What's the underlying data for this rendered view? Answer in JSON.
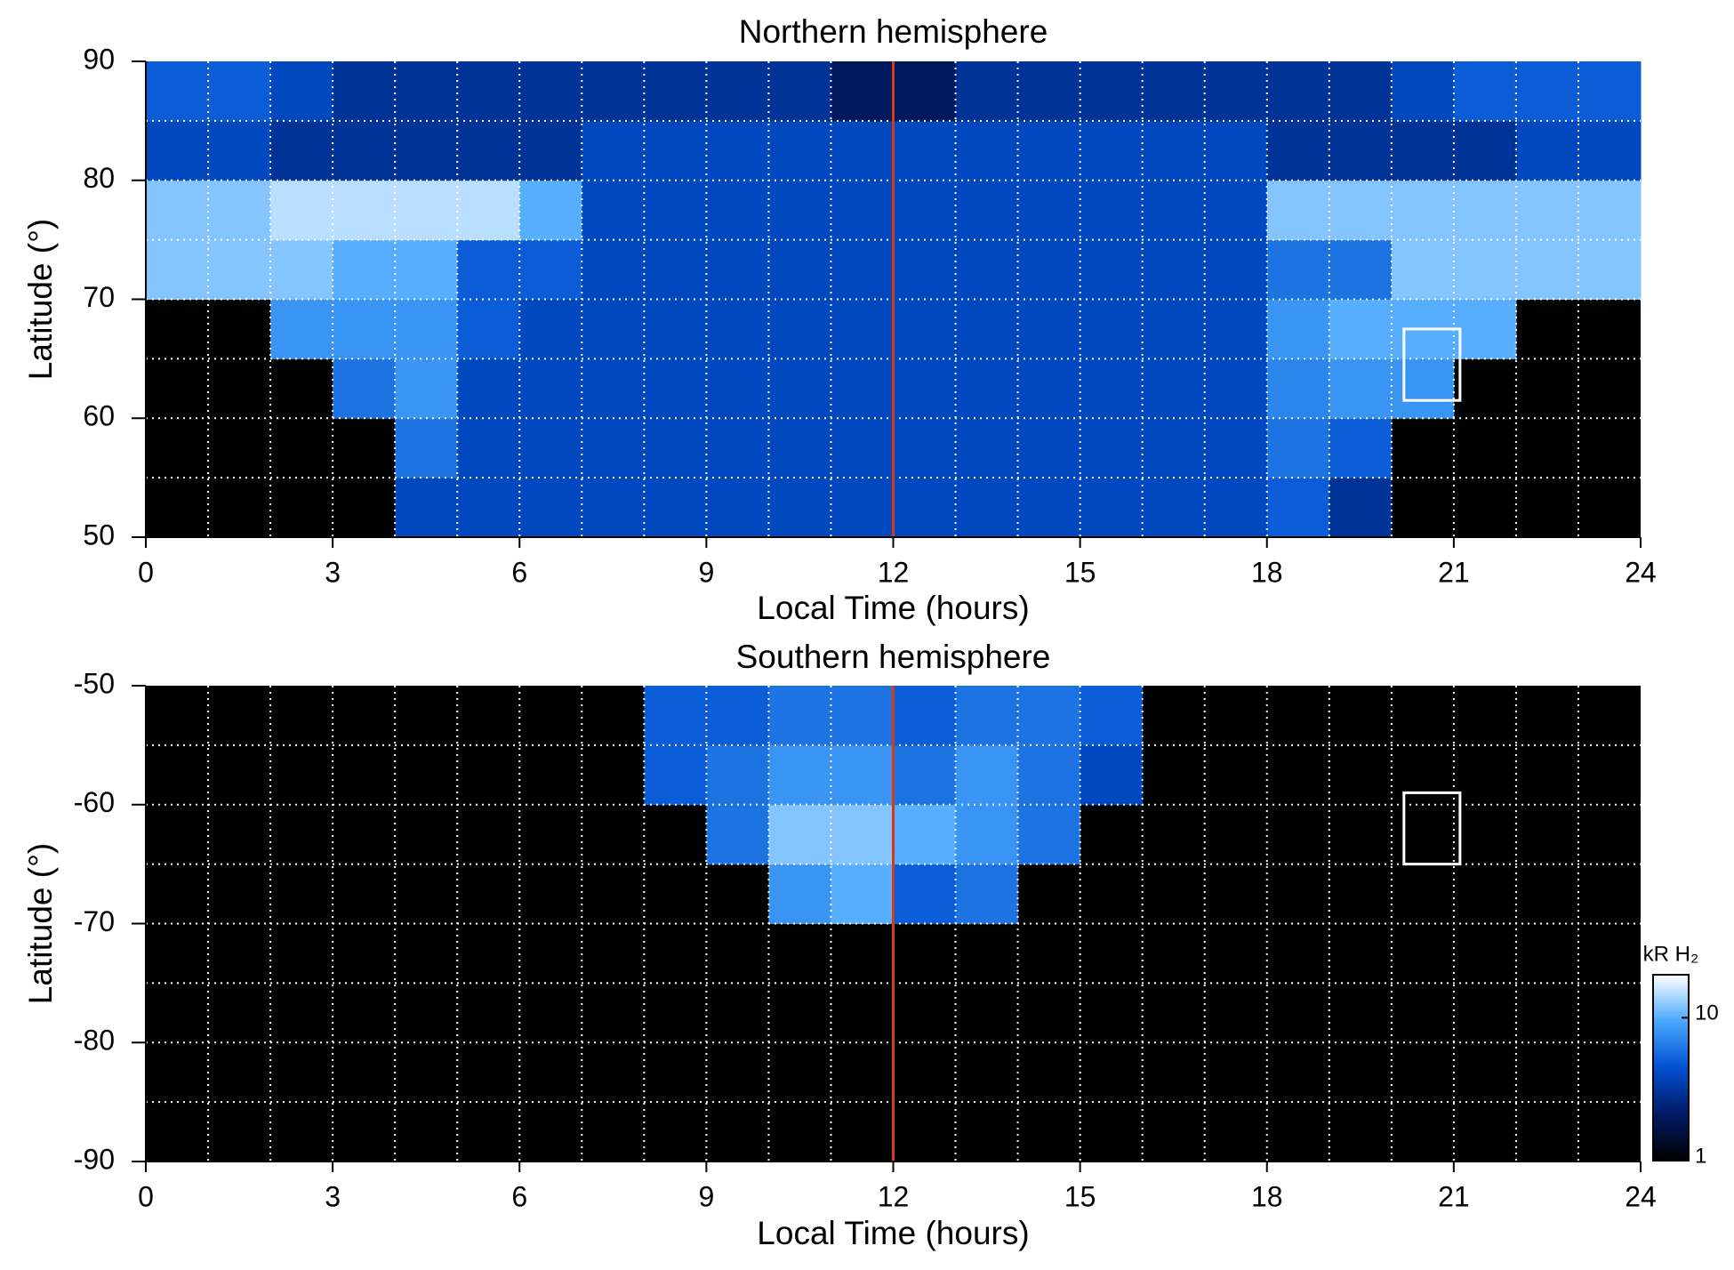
{
  "chart_data": [
    {
      "type": "heatmap",
      "title": "Northern hemisphere",
      "x_label": "Local Time (hours)",
      "y_label": "Latitude (°)",
      "xlim": [
        0,
        24
      ],
      "xticks": [
        0,
        3,
        6,
        9,
        12,
        15,
        18,
        21,
        24
      ],
      "ylim": [
        50,
        90
      ],
      "yticks": [
        50,
        60,
        70,
        80,
        90
      ],
      "x_grid": [
        1,
        2,
        3,
        4,
        5,
        6,
        7,
        8,
        9,
        10,
        11,
        12,
        13,
        14,
        15,
        16,
        17,
        18,
        19,
        20,
        21,
        22,
        23
      ],
      "y_grid": [
        55,
        60,
        65,
        70,
        75,
        80,
        85
      ],
      "x_edges": [
        0,
        1,
        2,
        3,
        4,
        5,
        6,
        7,
        8,
        9,
        10,
        11,
        12,
        13,
        14,
        15,
        16,
        17,
        18,
        19,
        20,
        21,
        22,
        23,
        24
      ],
      "y_edges": [
        50,
        55,
        60,
        65,
        70,
        75,
        80,
        85,
        90
      ],
      "z": [
        [
          null,
          null,
          null,
          null,
          4,
          4,
          4,
          4,
          4,
          4,
          4,
          4,
          4,
          4,
          4,
          4,
          4,
          4,
          5,
          3,
          null,
          null,
          null,
          null
        ],
        [
          null,
          null,
          null,
          null,
          6,
          4,
          4,
          4,
          4,
          4,
          4,
          4,
          4,
          4,
          4,
          4,
          4,
          4,
          6,
          5,
          null,
          null,
          null,
          null
        ],
        [
          null,
          null,
          null,
          6,
          8,
          4,
          4,
          4,
          4,
          4,
          4,
          4,
          4,
          4,
          4,
          4,
          4,
          4,
          7,
          8,
          8,
          null,
          null,
          null
        ],
        [
          null,
          null,
          8,
          8,
          8,
          5,
          4,
          4,
          4,
          4,
          4,
          4,
          4,
          4,
          4,
          4,
          4,
          4,
          8,
          10,
          10,
          10,
          null,
          null
        ],
        [
          12,
          12,
          12,
          10,
          10,
          5,
          5,
          4,
          4,
          4,
          4,
          4,
          4,
          4,
          4,
          4,
          4,
          4,
          6,
          6,
          12,
          12,
          12,
          12
        ],
        [
          12,
          12,
          15,
          15,
          15,
          15,
          10,
          4,
          4,
          4,
          4,
          4,
          4,
          4,
          4,
          4,
          4,
          4,
          12,
          12,
          12,
          12,
          12,
          12
        ],
        [
          4,
          4,
          3,
          3,
          3,
          3,
          3,
          4,
          4,
          4,
          4,
          4,
          4,
          4,
          4,
          4,
          4,
          4,
          3,
          3,
          3,
          3,
          4,
          4
        ],
        [
          5,
          5,
          4,
          3,
          3,
          3,
          3,
          3,
          3,
          3,
          3,
          2,
          2,
          3,
          3,
          3,
          3,
          3,
          3,
          3,
          4,
          5,
          5,
          5
        ]
      ],
      "vline": {
        "x": 12,
        "color": "#d83a10"
      },
      "box": {
        "x": [
          20.2,
          21.1
        ],
        "y": [
          61.5,
          67.5
        ],
        "color": "#ffffff"
      }
    },
    {
      "type": "heatmap",
      "title": "Southern hemisphere",
      "x_label": "Local Time (hours)",
      "y_label": "Latitude (°)",
      "xlim": [
        0,
        24
      ],
      "xticks": [
        0,
        3,
        6,
        9,
        12,
        15,
        18,
        21,
        24
      ],
      "ylim": [
        -90,
        -50
      ],
      "yticks": [
        -90,
        -80,
        -70,
        -60,
        -50
      ],
      "x_grid": [
        1,
        2,
        3,
        4,
        5,
        6,
        7,
        8,
        9,
        10,
        11,
        12,
        13,
        14,
        15,
        16,
        17,
        18,
        19,
        20,
        21,
        22,
        23
      ],
      "y_grid": [
        -85,
        -80,
        -75,
        -70,
        -65,
        -60,
        -55
      ],
      "x_edges": [
        0,
        1,
        2,
        3,
        4,
        5,
        6,
        7,
        8,
        9,
        10,
        11,
        12,
        13,
        14,
        15,
        16,
        17,
        18,
        19,
        20,
        21,
        22,
        23,
        24
      ],
      "y_edges": [
        -90,
        -85,
        -80,
        -75,
        -70,
        -65,
        -60,
        -55,
        -50
      ],
      "z": [
        [
          null,
          null,
          null,
          null,
          null,
          null,
          null,
          null,
          null,
          null,
          null,
          null,
          null,
          null,
          null,
          null,
          null,
          null,
          null,
          null,
          null,
          null,
          null,
          null
        ],
        [
          null,
          null,
          null,
          null,
          null,
          null,
          null,
          null,
          null,
          null,
          null,
          null,
          null,
          null,
          null,
          null,
          null,
          null,
          null,
          null,
          null,
          null,
          null,
          null
        ],
        [
          null,
          null,
          null,
          null,
          null,
          null,
          null,
          null,
          null,
          null,
          null,
          null,
          null,
          null,
          null,
          null,
          null,
          null,
          null,
          null,
          null,
          null,
          null,
          null
        ],
        [
          null,
          null,
          null,
          null,
          null,
          null,
          null,
          null,
          null,
          null,
          null,
          null,
          null,
          null,
          null,
          null,
          null,
          null,
          null,
          null,
          null,
          null,
          null,
          null
        ],
        [
          null,
          null,
          null,
          null,
          null,
          null,
          null,
          null,
          null,
          null,
          8,
          10,
          5,
          6,
          null,
          null,
          null,
          null,
          null,
          null,
          null,
          null,
          null,
          null
        ],
        [
          null,
          null,
          null,
          null,
          null,
          null,
          null,
          null,
          null,
          6,
          12,
          12,
          10,
          8,
          6,
          null,
          null,
          null,
          null,
          null,
          null,
          null,
          null,
          null
        ],
        [
          null,
          null,
          null,
          null,
          null,
          null,
          null,
          null,
          5,
          6,
          8,
          8,
          6,
          8,
          6,
          4,
          null,
          null,
          null,
          null,
          null,
          null,
          null,
          null
        ],
        [
          null,
          null,
          null,
          null,
          null,
          null,
          null,
          null,
          5,
          5,
          6,
          6,
          5,
          6,
          6,
          5,
          null,
          null,
          null,
          null,
          null,
          null,
          null,
          null
        ]
      ],
      "vline": {
        "x": 12,
        "color": "#d83a10"
      },
      "box": {
        "x": [
          20.2,
          21.1
        ],
        "y": [
          -65,
          -59
        ],
        "color": "#ffffff"
      },
      "colorbar": {
        "label": "kR H₂",
        "lim": [
          1,
          20
        ],
        "ticks": [
          1,
          10
        ],
        "log": true,
        "colormap": [
          "#000000",
          "#001a66",
          "#0050d0",
          "#4aa8ff",
          "#ffffff"
        ]
      }
    }
  ]
}
